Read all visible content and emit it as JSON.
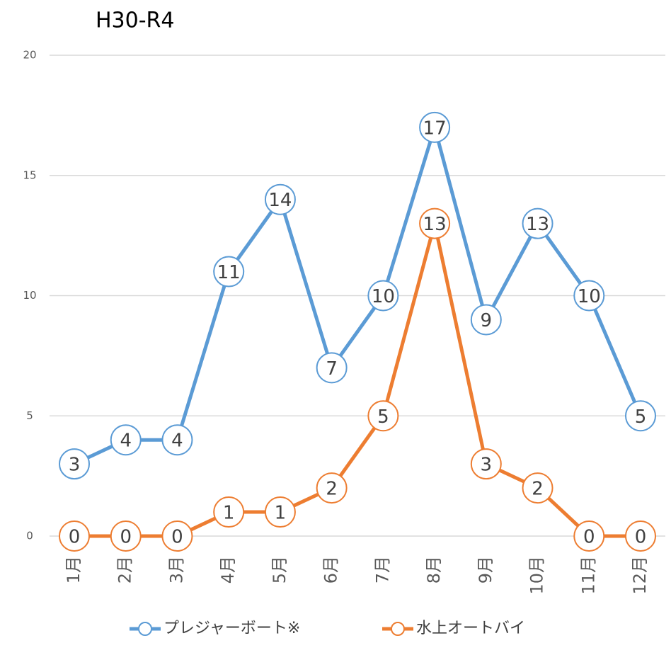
{
  "chart_data": {
    "type": "line",
    "title": "H30-R4",
    "categories": [
      "1月",
      "2月",
      "3月",
      "4月",
      "5月",
      "6月",
      "7月",
      "8月",
      "9月",
      "10月",
      "11月",
      "12月"
    ],
    "series": [
      {
        "name": "プレジャーボート※",
        "color": "#5b9bd5",
        "values": [
          3,
          4,
          4,
          11,
          14,
          7,
          10,
          17,
          9,
          13,
          10,
          5
        ]
      },
      {
        "name": "水上オートバイ",
        "color": "#ed7d31",
        "values": [
          0,
          0,
          0,
          1,
          1,
          2,
          5,
          13,
          3,
          2,
          0,
          0
        ]
      }
    ],
    "ylim": [
      0,
      20
    ],
    "yticks": [
      0,
      5,
      10,
      15,
      20
    ],
    "grid": true,
    "legend": "bottom"
  }
}
